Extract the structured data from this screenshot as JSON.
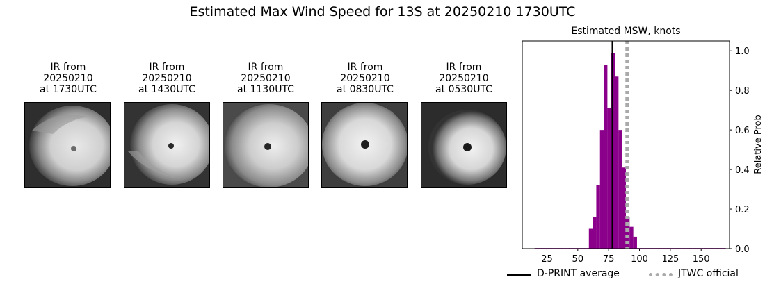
{
  "page": {
    "title": "Estimated Max Wind Speed for 13S at 20250210 1730UTC"
  },
  "thumbnails": [
    {
      "label": "IR from\n20250210\nat 1730UTC",
      "eye": "weak"
    },
    {
      "label": "IR from\n20250210\nat 1430UTC",
      "eye": "small"
    },
    {
      "label": "IR from\n20250210\nat 1130UTC",
      "eye": "small"
    },
    {
      "label": "IR from\n20250210\nat 0830UTC",
      "eye": "clear"
    },
    {
      "label": "IR from\n20250210\nat 0530UTC",
      "eye": "clear"
    }
  ],
  "chart_data": {
    "type": "bar",
    "title": "Estimated MSW, knots",
    "xlabel": "",
    "ylabel": "Relative Prob",
    "xlim": [
      5,
      173
    ],
    "ylim": [
      0,
      1.05
    ],
    "xticks": [
      25,
      50,
      75,
      100,
      125,
      150
    ],
    "yticks": [
      0.0,
      0.2,
      0.4,
      0.6,
      0.8,
      1.0
    ],
    "y_axis_side": "right",
    "bin_width": 3,
    "bins": [
      {
        "x": 15,
        "value": 0.003
      },
      {
        "x": 18,
        "value": 0.003
      },
      {
        "x": 21,
        "value": 0.003
      },
      {
        "x": 24,
        "value": 0.003
      },
      {
        "x": 27,
        "value": 0.003
      },
      {
        "x": 30,
        "value": 0.003
      },
      {
        "x": 33,
        "value": 0.003
      },
      {
        "x": 36,
        "value": 0.003
      },
      {
        "x": 39,
        "value": 0.003
      },
      {
        "x": 42,
        "value": 0.003
      },
      {
        "x": 45,
        "value": 0.003
      },
      {
        "x": 48,
        "value": 0.003
      },
      {
        "x": 51,
        "value": 0.003
      },
      {
        "x": 54,
        "value": 0.003
      },
      {
        "x": 57,
        "value": 0.003
      },
      {
        "x": 59,
        "value": 0.1
      },
      {
        "x": 62,
        "value": 0.16
      },
      {
        "x": 65,
        "value": 0.32
      },
      {
        "x": 68,
        "value": 0.6
      },
      {
        "x": 71,
        "value": 0.93
      },
      {
        "x": 74,
        "value": 0.71
      },
      {
        "x": 77,
        "value": 0.99
      },
      {
        "x": 80,
        "value": 0.87
      },
      {
        "x": 83,
        "value": 0.6
      },
      {
        "x": 86,
        "value": 0.41
      },
      {
        "x": 89,
        "value": 0.16
      },
      {
        "x": 92,
        "value": 0.11
      },
      {
        "x": 95,
        "value": 0.06
      },
      {
        "x": 98,
        "value": 0.003
      },
      {
        "x": 101,
        "value": 0.003
      },
      {
        "x": 104,
        "value": 0.003
      },
      {
        "x": 107,
        "value": 0.003
      },
      {
        "x": 110,
        "value": 0.003
      },
      {
        "x": 113,
        "value": 0.003
      },
      {
        "x": 116,
        "value": 0.003
      },
      {
        "x": 119,
        "value": 0.003
      },
      {
        "x": 122,
        "value": 0.003
      },
      {
        "x": 125,
        "value": 0.003
      },
      {
        "x": 128,
        "value": 0.003
      },
      {
        "x": 131,
        "value": 0.003
      },
      {
        "x": 134,
        "value": 0.003
      },
      {
        "x": 137,
        "value": 0.003
      },
      {
        "x": 140,
        "value": 0.003
      },
      {
        "x": 143,
        "value": 0.003
      },
      {
        "x": 146,
        "value": 0.003
      },
      {
        "x": 149,
        "value": 0.003
      },
      {
        "x": 152,
        "value": 0.003
      },
      {
        "x": 155,
        "value": 0.003
      },
      {
        "x": 158,
        "value": 0.003
      },
      {
        "x": 161,
        "value": 0.003
      },
      {
        "x": 164,
        "value": 0.003
      },
      {
        "x": 167,
        "value": 0.003
      }
    ],
    "bar_color": "#8b008b",
    "reference_lines": [
      {
        "name": "D-PRINT average",
        "x": 78,
        "color": "#000000",
        "style": "solid"
      },
      {
        "name": "JTWC official",
        "x": 90,
        "color": "#aaaaaa",
        "style": "dotted"
      }
    ],
    "legend_position": "bottom-right"
  }
}
